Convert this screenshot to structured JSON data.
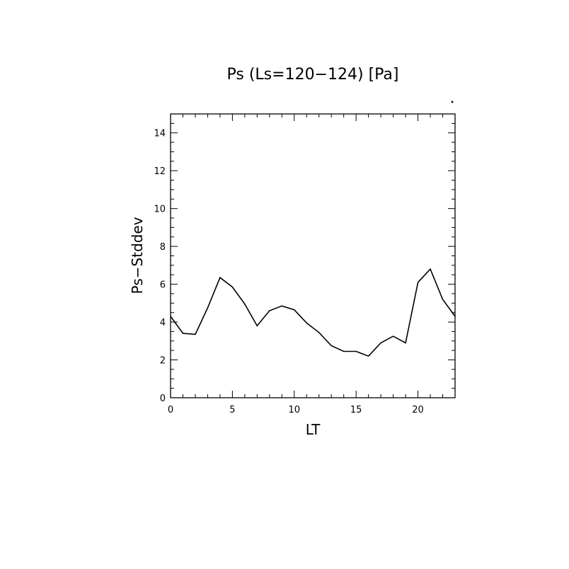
{
  "chart_data": {
    "type": "line",
    "title": "Ps (Ls=120−124) [Pa]",
    "xlabel": "LT",
    "ylabel": "Ps−Stddev",
    "xlim": [
      0,
      23
    ],
    "ylim": [
      0,
      15
    ],
    "x_ticks": [
      0,
      5,
      10,
      15,
      20
    ],
    "y_ticks": [
      0,
      2,
      4,
      6,
      8,
      10,
      12,
      14
    ],
    "grid": false,
    "series": [
      {
        "x": [
          0,
          1,
          2,
          3,
          4,
          5,
          6,
          7,
          8,
          9,
          10,
          11,
          12,
          13,
          14,
          15,
          16,
          17,
          18,
          19,
          20,
          21,
          22,
          23
        ],
        "values": [
          4.3,
          3.4,
          3.35,
          4.75,
          6.35,
          5.85,
          4.95,
          3.8,
          4.6,
          4.85,
          4.65,
          3.95,
          3.45,
          2.75,
          2.45,
          2.45,
          2.2,
          2.9,
          3.25,
          2.9,
          6.1,
          6.8,
          5.2,
          4.3
        ]
      }
    ]
  }
}
